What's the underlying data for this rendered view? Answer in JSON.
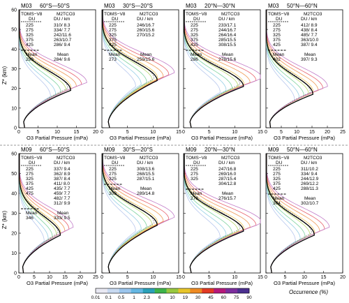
{
  "figure": {
    "y_axis_label": "Z* (km)",
    "x_axis_label": "O3 Partial Pressure (mPa)",
    "colorbar_label": "Occurrence (%)",
    "colorbar_ticks": [
      "0.01",
      "0.1",
      "0.5",
      "1",
      "2.3",
      "6",
      "10",
      "19",
      "30",
      "45",
      "60",
      "75",
      "90"
    ],
    "colorbar_colors": [
      "#e8e8f2",
      "#c7d9f0",
      "#9cc5ec",
      "#65b7e3",
      "#2aa1b8",
      "#3db34a",
      "#98c83f",
      "#e7c52a",
      "#ee8a22",
      "#e23a24",
      "#b6197a",
      "#7c2d9d",
      "#4b2f8f"
    ]
  },
  "chart_data": [
    {
      "type": "line",
      "model": "M03",
      "latitude_band": "60°S—50°S",
      "xlim": [
        0,
        20
      ],
      "xticks": [
        0,
        5,
        10,
        15,
        20
      ],
      "ylim": [
        0,
        60
      ],
      "yticks": [
        0,
        10,
        20,
        30,
        40,
        50,
        60
      ],
      "toms_du": [
        "225",
        "275",
        "325",
        "375",
        "425"
      ],
      "m2tco3": [
        "310/ 8.3",
        "334/ 7.7",
        "242/11.6",
        "263/10.7",
        "286/ 9.4"
      ],
      "m2tco3_colors": [
        "#d62728",
        "#2ca02c",
        "#2ca02c",
        "#1f77b4",
        "#9467bd"
      ],
      "mean_toms": "299",
      "mean_m2tco3": "284/ 9.6",
      "peak_alt_km": 20,
      "peak_mpa": 15
    },
    {
      "type": "line",
      "model": "M03",
      "latitude_band": "30°S—20°S",
      "xlim": [
        0,
        15
      ],
      "xticks": [
        0,
        5,
        10,
        15
      ],
      "ylim": [
        0,
        60
      ],
      "yticks": [
        0,
        10,
        20,
        30,
        40,
        50,
        60
      ],
      "toms_du": [
        "225",
        "275",
        "325",
        "375",
        "425"
      ],
      "m2tco3": [
        "246/16.7",
        "260/15.6",
        "270/15.2"
      ],
      "m2tco3_colors": [
        "#e7a82a",
        "#c080e0",
        "#48c0e0"
      ],
      "mean_toms": "273",
      "mean_m2tco3": "259/15.6",
      "peak_alt_km": 25,
      "peak_mpa": 12
    },
    {
      "type": "line",
      "model": "M03",
      "latitude_band": "20°N—30°N",
      "xlim": [
        0,
        15
      ],
      "xticks": [
        0,
        5,
        10,
        15
      ],
      "ylim": [
        0,
        60
      ],
      "yticks": [
        0,
        10,
        20,
        30,
        40,
        50,
        60
      ],
      "toms_du": [
        "225",
        "275",
        "325",
        "375",
        "425"
      ],
      "m2tco3": [
        "233/17.1",
        "244/16.7",
        "264/16.4",
        "285/15.5",
        "308/15.5"
      ],
      "m2tco3_colors": [
        "#8fd0e8",
        "#2ca02c",
        "#7e2f8e",
        "#9467bd",
        "#e7a82a"
      ],
      "mean_toms": "286",
      "mean_m2tco3": "278/15.6",
      "peak_alt_km": 22,
      "peak_mpa": 13
    },
    {
      "type": "line",
      "model": "M03",
      "latitude_band": "50°N—60°N",
      "xlim": [
        0,
        25
      ],
      "xticks": [
        0,
        5,
        10,
        15,
        20,
        25
      ],
      "ylim": [
        0,
        60
      ],
      "yticks": [
        0,
        10,
        20,
        30,
        40,
        50,
        60
      ],
      "toms_du": [
        "225",
        "275",
        "325",
        "375",
        "425"
      ],
      "m2tco3": [
        "412/ 8.9",
        "438/ 8.4",
        "485/ 7.7",
        "363/10.0",
        "387/ 9.4"
      ],
      "m2tco3_colors": [
        "#d62728",
        "#e7a82a",
        "#2ca02c",
        "#d62728",
        "#d62728"
      ],
      "mean_toms": "402",
      "mean_m2tco3": "397/ 9.3",
      "peak_alt_km": 18,
      "peak_mpa": 17
    },
    {
      "type": "line",
      "model": "M09",
      "latitude_band": "60°S—50°S",
      "xlim": [
        0,
        25
      ],
      "xticks": [
        0,
        5,
        10,
        15,
        20,
        25
      ],
      "ylim": [
        0,
        60
      ],
      "yticks": [
        0,
        10,
        20,
        30,
        40,
        50,
        60
      ],
      "toms_du": [
        "225",
        "275",
        "325",
        "375",
        "425",
        "475"
      ],
      "m2tco3": [
        "337/ 9.4",
        "362/ 8.9",
        "387/ 8.4",
        "411/ 8.0",
        "435/ 7.7",
        "459/ 7.7",
        "482/ 7.7",
        "312/ 9.9"
      ],
      "m2tco3_colors": [
        "#d62728",
        "#e7a82a",
        "#e7a82a",
        "#2ca02c",
        "#98c83f",
        "#48c0e0",
        "#1f77b4",
        "#d62728"
      ],
      "mean_toms": "346",
      "mean_m2tco3": "333/ 9.5",
      "peak_alt_km": 20,
      "peak_mpa": 15
    },
    {
      "type": "line",
      "model": "M09",
      "latitude_band": "30°S—20°S",
      "xlim": [
        0,
        15
      ],
      "xticks": [
        0,
        5,
        10,
        15
      ],
      "ylim": [
        0,
        60
      ],
      "yticks": [
        0,
        10,
        20,
        30,
        40,
        50,
        60
      ],
      "toms_du": [
        "225",
        "275",
        "325"
      ],
      "m2tco3": [
        "308/13.6",
        "268/15.5",
        "287/15.1"
      ],
      "m2tco3_colors": [
        "#d62728",
        "#d62728",
        "#7e2f8e"
      ],
      "mean_toms": "303",
      "mean_m2tco3": "289/14.8",
      "peak_alt_km": 25,
      "peak_mpa": 12
    },
    {
      "type": "line",
      "model": "M09",
      "latitude_band": "20°N—30°N",
      "xlim": [
        0,
        15
      ],
      "xticks": [
        0,
        5,
        10,
        15
      ],
      "ylim": [
        0,
        60
      ],
      "yticks": [
        0,
        10,
        20,
        30,
        40,
        50,
        60
      ],
      "toms_du": [
        "225",
        "275",
        "325"
      ],
      "m2tco3": [
        "247/16.8",
        "269/16.0",
        "287/15.4",
        "304/12.8"
      ],
      "m2tco3_colors": [
        "#9467bd",
        "#7e2f8e",
        "#d62728",
        "#1f77b4"
      ],
      "mean_toms": "278",
      "mean_m2tco3": "276/15.7",
      "peak_alt_km": 22,
      "peak_mpa": 13
    },
    {
      "type": "line",
      "model": "M09",
      "latitude_band": "50°N—60°N",
      "xlim": [
        0,
        20
      ],
      "xticks": [
        0,
        5,
        10,
        15,
        20
      ],
      "ylim": [
        0,
        60
      ],
      "yticks": [
        0,
        10,
        20,
        30,
        40,
        50,
        60
      ],
      "toms_du": [
        "225",
        "275",
        "325",
        "375",
        "425"
      ],
      "m2tco3": [
        "311/10.2",
        "334/ 9.4",
        "244/12.9",
        "269/12.2",
        "288/11.3"
      ],
      "m2tco3_colors": [
        "#d62728",
        "#d62728",
        "#1f77b4",
        "#d62728",
        "#7e2f8e"
      ],
      "mean_toms": "304",
      "mean_m2tco3": "302/10.7",
      "peak_alt_km": 20,
      "peak_mpa": 14
    }
  ]
}
